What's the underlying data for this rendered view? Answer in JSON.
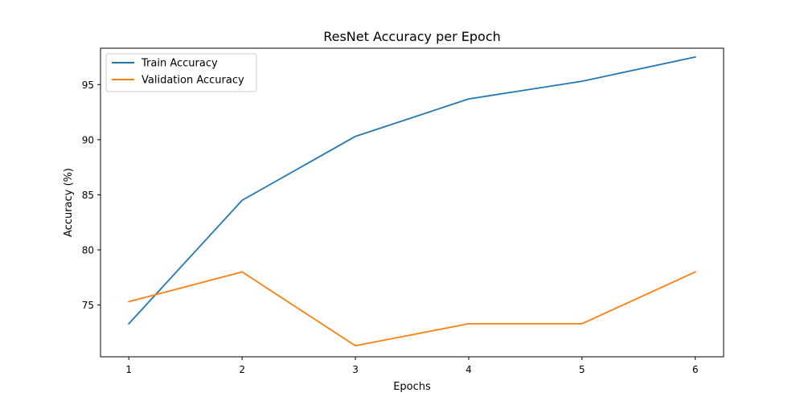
{
  "chart_data": {
    "type": "line",
    "title": "ResNet Accuracy per Epoch",
    "xlabel": "Epochs",
    "ylabel": "Accuracy (%)",
    "x": [
      1,
      2,
      3,
      4,
      5,
      6
    ],
    "xlim": [
      0.75,
      6.25
    ],
    "ylim": [
      70.3,
      98.3
    ],
    "xticks": [
      1,
      2,
      3,
      4,
      5,
      6
    ],
    "yticks": [
      75,
      80,
      85,
      90,
      95
    ],
    "grid": false,
    "legend_position": "top-left",
    "series": [
      {
        "name": "Train Accuracy",
        "color": "#1f77b4",
        "values": [
          73.3,
          84.5,
          90.3,
          93.7,
          95.3,
          97.5
        ]
      },
      {
        "name": "Validation Accuracy",
        "color": "#ff7f0e",
        "values": [
          75.3,
          78.0,
          71.3,
          73.3,
          73.3,
          78.0
        ]
      }
    ]
  }
}
